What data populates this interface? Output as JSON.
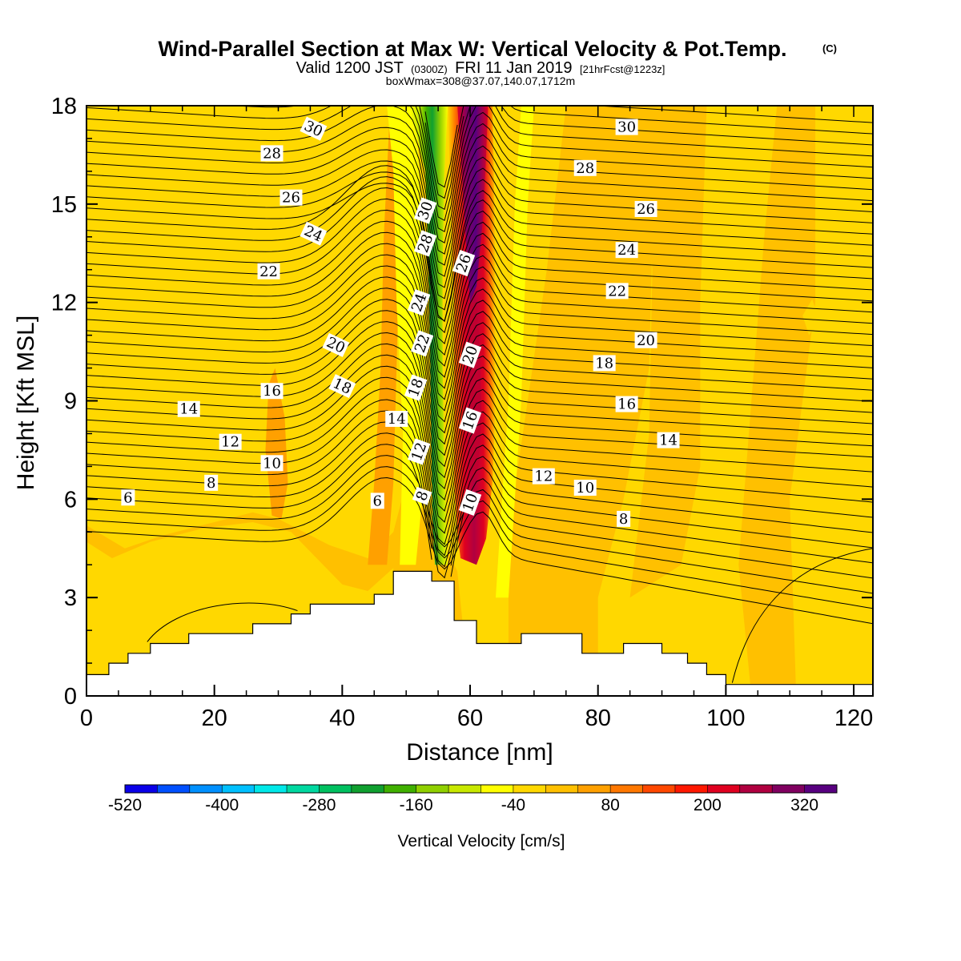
{
  "title": {
    "main": "Wind-Parallel Section at Max W: Vertical Velocity & Pot.Temp.",
    "copyright": "(C)",
    "valid_prefix": "Valid 1200 JST",
    "valid_utc": "(0300Z)",
    "valid_date": "FRI 11 Jan 2019",
    "forecast": "[21hrFcst@1223z]",
    "box_info": "boxWmax=308@37.07,140.07,1712m"
  },
  "chart_data": {
    "type": "heatmap",
    "xlabel": "Distance [nm]",
    "ylabel": "Height [Kft MSL]",
    "xlim": [
      0,
      123
    ],
    "ylim": [
      0,
      18
    ],
    "xticks": [
      0,
      20,
      40,
      60,
      80,
      100,
      120
    ],
    "yticks": [
      0,
      3,
      6,
      9,
      12,
      15,
      18
    ],
    "colorbar": {
      "title": "Vertical Velocity [cm/s]",
      "min": -520,
      "max": 360,
      "step": 40,
      "tick_values": [
        -520,
        -400,
        -280,
        -160,
        -40,
        80,
        200,
        320
      ],
      "colors": [
        "#0a00e8",
        "#0050ff",
        "#0090ff",
        "#00c0ff",
        "#00e8e8",
        "#00d8a0",
        "#00c060",
        "#10a030",
        "#40b000",
        "#90d000",
        "#c8e800",
        "#ffff00",
        "#ffd800",
        "#ffc000",
        "#ffa000",
        "#ff7800",
        "#ff4800",
        "#ff1800",
        "#e00020",
        "#b00040",
        "#800060",
        "#580080"
      ]
    },
    "terrain": [
      [
        0,
        0.65
      ],
      [
        3.5,
        0.65
      ],
      [
        3.5,
        1.0
      ],
      [
        6.5,
        1.0
      ],
      [
        6.5,
        1.3
      ],
      [
        10,
        1.3
      ],
      [
        10,
        1.6
      ],
      [
        16,
        1.6
      ],
      [
        16,
        1.9
      ],
      [
        26,
        1.9
      ],
      [
        26,
        2.2
      ],
      [
        32,
        2.2
      ],
      [
        32,
        2.5
      ],
      [
        35,
        2.5
      ],
      [
        35,
        2.8
      ],
      [
        45,
        2.8
      ],
      [
        45,
        3.1
      ],
      [
        48,
        3.1
      ],
      [
        48,
        3.8
      ],
      [
        54,
        3.8
      ],
      [
        54,
        3.5
      ],
      [
        57.5,
        3.5
      ],
      [
        57.5,
        2.3
      ],
      [
        61,
        2.3
      ],
      [
        61,
        1.6
      ],
      [
        68,
        1.6
      ],
      [
        68,
        1.9
      ],
      [
        77.5,
        1.9
      ],
      [
        77.5,
        1.3
      ],
      [
        84,
        1.3
      ],
      [
        84,
        1.6
      ],
      [
        90,
        1.6
      ],
      [
        90,
        1.3
      ],
      [
        94,
        1.3
      ],
      [
        94,
        1.0
      ],
      [
        97,
        1.0
      ],
      [
        97,
        0.65
      ],
      [
        100,
        0.65
      ],
      [
        100,
        0.35
      ],
      [
        123,
        0.35
      ]
    ],
    "theta_contours": [
      {
        "label": "6",
        "label_at": [
          6.5,
          6.05
        ]
      },
      {
        "label": "6",
        "label_at": [
          45.5,
          5.95
        ]
      },
      {
        "label": "8",
        "label_at": [
          19.5,
          6.5
        ]
      },
      {
        "label": "8",
        "label_at": [
          52.5,
          6.1
        ]
      },
      {
        "label": "8",
        "label_at": [
          84,
          5.4
        ]
      },
      {
        "label": "10",
        "label_at": [
          29,
          7.1
        ]
      },
      {
        "label": "10",
        "label_at": [
          60,
          5.9
        ]
      },
      {
        "label": "10",
        "label_at": [
          78,
          6.35
        ]
      },
      {
        "label": "12",
        "label_at": [
          22.5,
          7.75
        ]
      },
      {
        "label": "12",
        "label_at": [
          52,
          7.45
        ]
      },
      {
        "label": "12",
        "label_at": [
          71.5,
          6.7
        ]
      },
      {
        "label": "14",
        "label_at": [
          16,
          8.75
        ]
      },
      {
        "label": "14",
        "label_at": [
          48.5,
          8.45
        ]
      },
      {
        "label": "14",
        "label_at": [
          91,
          7.8
        ]
      },
      {
        "label": "16",
        "label_at": [
          29,
          9.3
        ]
      },
      {
        "label": "16",
        "label_at": [
          60,
          8.4
        ]
      },
      {
        "label": "16",
        "label_at": [
          84.5,
          8.9
        ]
      },
      {
        "label": "18",
        "label_at": [
          40,
          9.45
        ]
      },
      {
        "label": "18",
        "label_at": [
          51.5,
          9.4
        ]
      },
      {
        "label": "18",
        "label_at": [
          81,
          10.15
        ]
      },
      {
        "label": "20",
        "label_at": [
          39,
          10.7
        ]
      },
      {
        "label": "20",
        "label_at": [
          60,
          10.4
        ]
      },
      {
        "label": "20",
        "label_at": [
          87.5,
          10.85
        ]
      },
      {
        "label": "22",
        "label_at": [
          28.5,
          12.95
        ]
      },
      {
        "label": "22",
        "label_at": [
          52.5,
          10.75
        ]
      },
      {
        "label": "22",
        "label_at": [
          83,
          12.35
        ]
      },
      {
        "label": "24",
        "label_at": [
          35.5,
          14.1
        ]
      },
      {
        "label": "24",
        "label_at": [
          52,
          12.0
        ]
      },
      {
        "label": "24",
        "label_at": [
          84.5,
          13.6
        ]
      },
      {
        "label": "26",
        "label_at": [
          32,
          15.2
        ]
      },
      {
        "label": "26",
        "label_at": [
          59,
          13.2
        ]
      },
      {
        "label": "26",
        "label_at": [
          87.5,
          14.85
        ]
      },
      {
        "label": "28",
        "label_at": [
          29,
          16.55
        ]
      },
      {
        "label": "28",
        "label_at": [
          53,
          13.8
        ]
      },
      {
        "label": "28",
        "label_at": [
          78,
          16.1
        ]
      },
      {
        "label": "30",
        "label_at": [
          35.5,
          17.3
        ]
      },
      {
        "label": "30",
        "label_at": [
          53,
          14.8
        ]
      },
      {
        "label": "30",
        "label_at": [
          84.5,
          17.35
        ]
      }
    ]
  }
}
